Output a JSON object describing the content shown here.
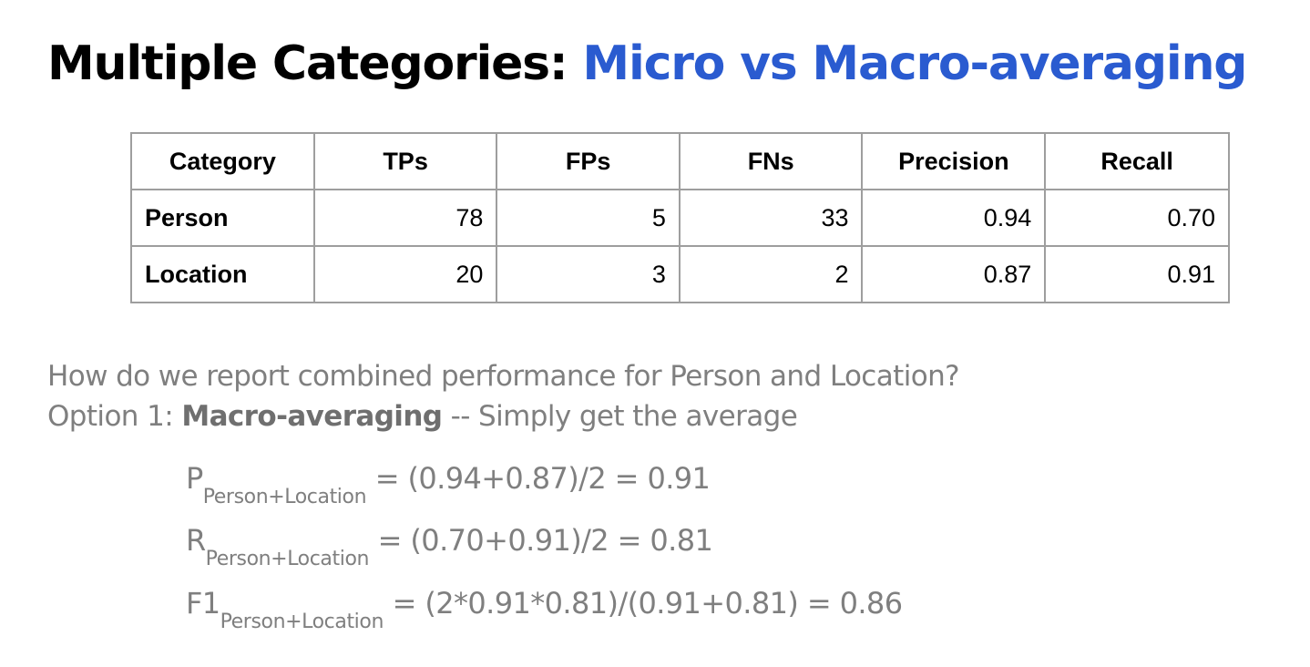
{
  "title": {
    "prefix": "Multiple Categories:",
    "accent": "Micro vs Macro-averaging"
  },
  "table": {
    "headers": [
      "Category",
      "TPs",
      "FPs",
      "FNs",
      "Precision",
      "Recall"
    ],
    "rows": [
      [
        "Person",
        "78",
        "5",
        "33",
        "0.94",
        "0.70"
      ],
      [
        "Location",
        "20",
        "3",
        "2",
        "0.87",
        "0.91"
      ]
    ]
  },
  "text": {
    "question": "How do we report combined performance for Person and Location?",
    "option_prefix": "Option 1: ",
    "option_bold": "Macro-averaging",
    "option_rest": " -- Simply get the average"
  },
  "formulas": [
    {
      "symbol": "P",
      "subscript": "Person+Location",
      "expression": " = (0.94+0.87)/2 = 0.91"
    },
    {
      "symbol": "R",
      "subscript": "Person+Location",
      "expression": " = (0.70+0.91)/2 = 0.81"
    },
    {
      "symbol": "F1",
      "subscript": "Person+Location",
      "expression": " = (2*0.91*0.81)/(0.91+0.81) = 0.86"
    }
  ],
  "colors": {
    "accent": "#2a5bd0",
    "body_text": "#7f7f7f",
    "table_border": "#9e9e9e"
  }
}
